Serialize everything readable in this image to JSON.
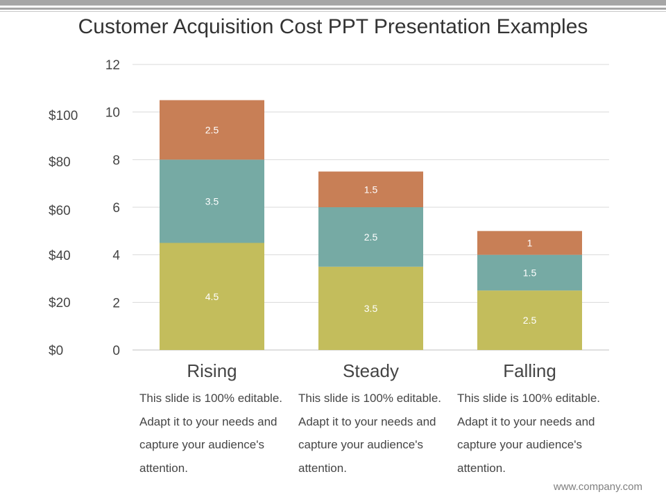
{
  "title": "Customer Acquisition Cost PPT Presentation Examples",
  "secondary_axis_labels": [
    "$100",
    "$80",
    "$60",
    "$40",
    "$20",
    "$0"
  ],
  "descriptions": [
    "This slide is 100% editable. Adapt it to your needs and capture your audience's attention.",
    "This slide is 100% editable. Adapt it to your needs and capture your audience's attention.",
    "This slide is 100% editable. Adapt it to your needs and capture your audience's attention."
  ],
  "footer": "www.company.com",
  "chart_data": {
    "type": "bar",
    "stacked": true,
    "categories": [
      "Rising",
      "Steady",
      "Falling"
    ],
    "series": [
      {
        "values": [
          4.5,
          3.5,
          2.5
        ],
        "color": "#c3bd5c"
      },
      {
        "values": [
          3.5,
          2.5,
          1.5
        ],
        "color": "#76aaa4"
      },
      {
        "values": [
          2.5,
          1.5,
          1
        ],
        "color": "#c87f56"
      }
    ],
    "ylim": [
      0,
      12
    ],
    "yticks": [
      0,
      2,
      4,
      6,
      8,
      10,
      12
    ],
    "grid": true,
    "legend": "none",
    "data_labels": true
  }
}
